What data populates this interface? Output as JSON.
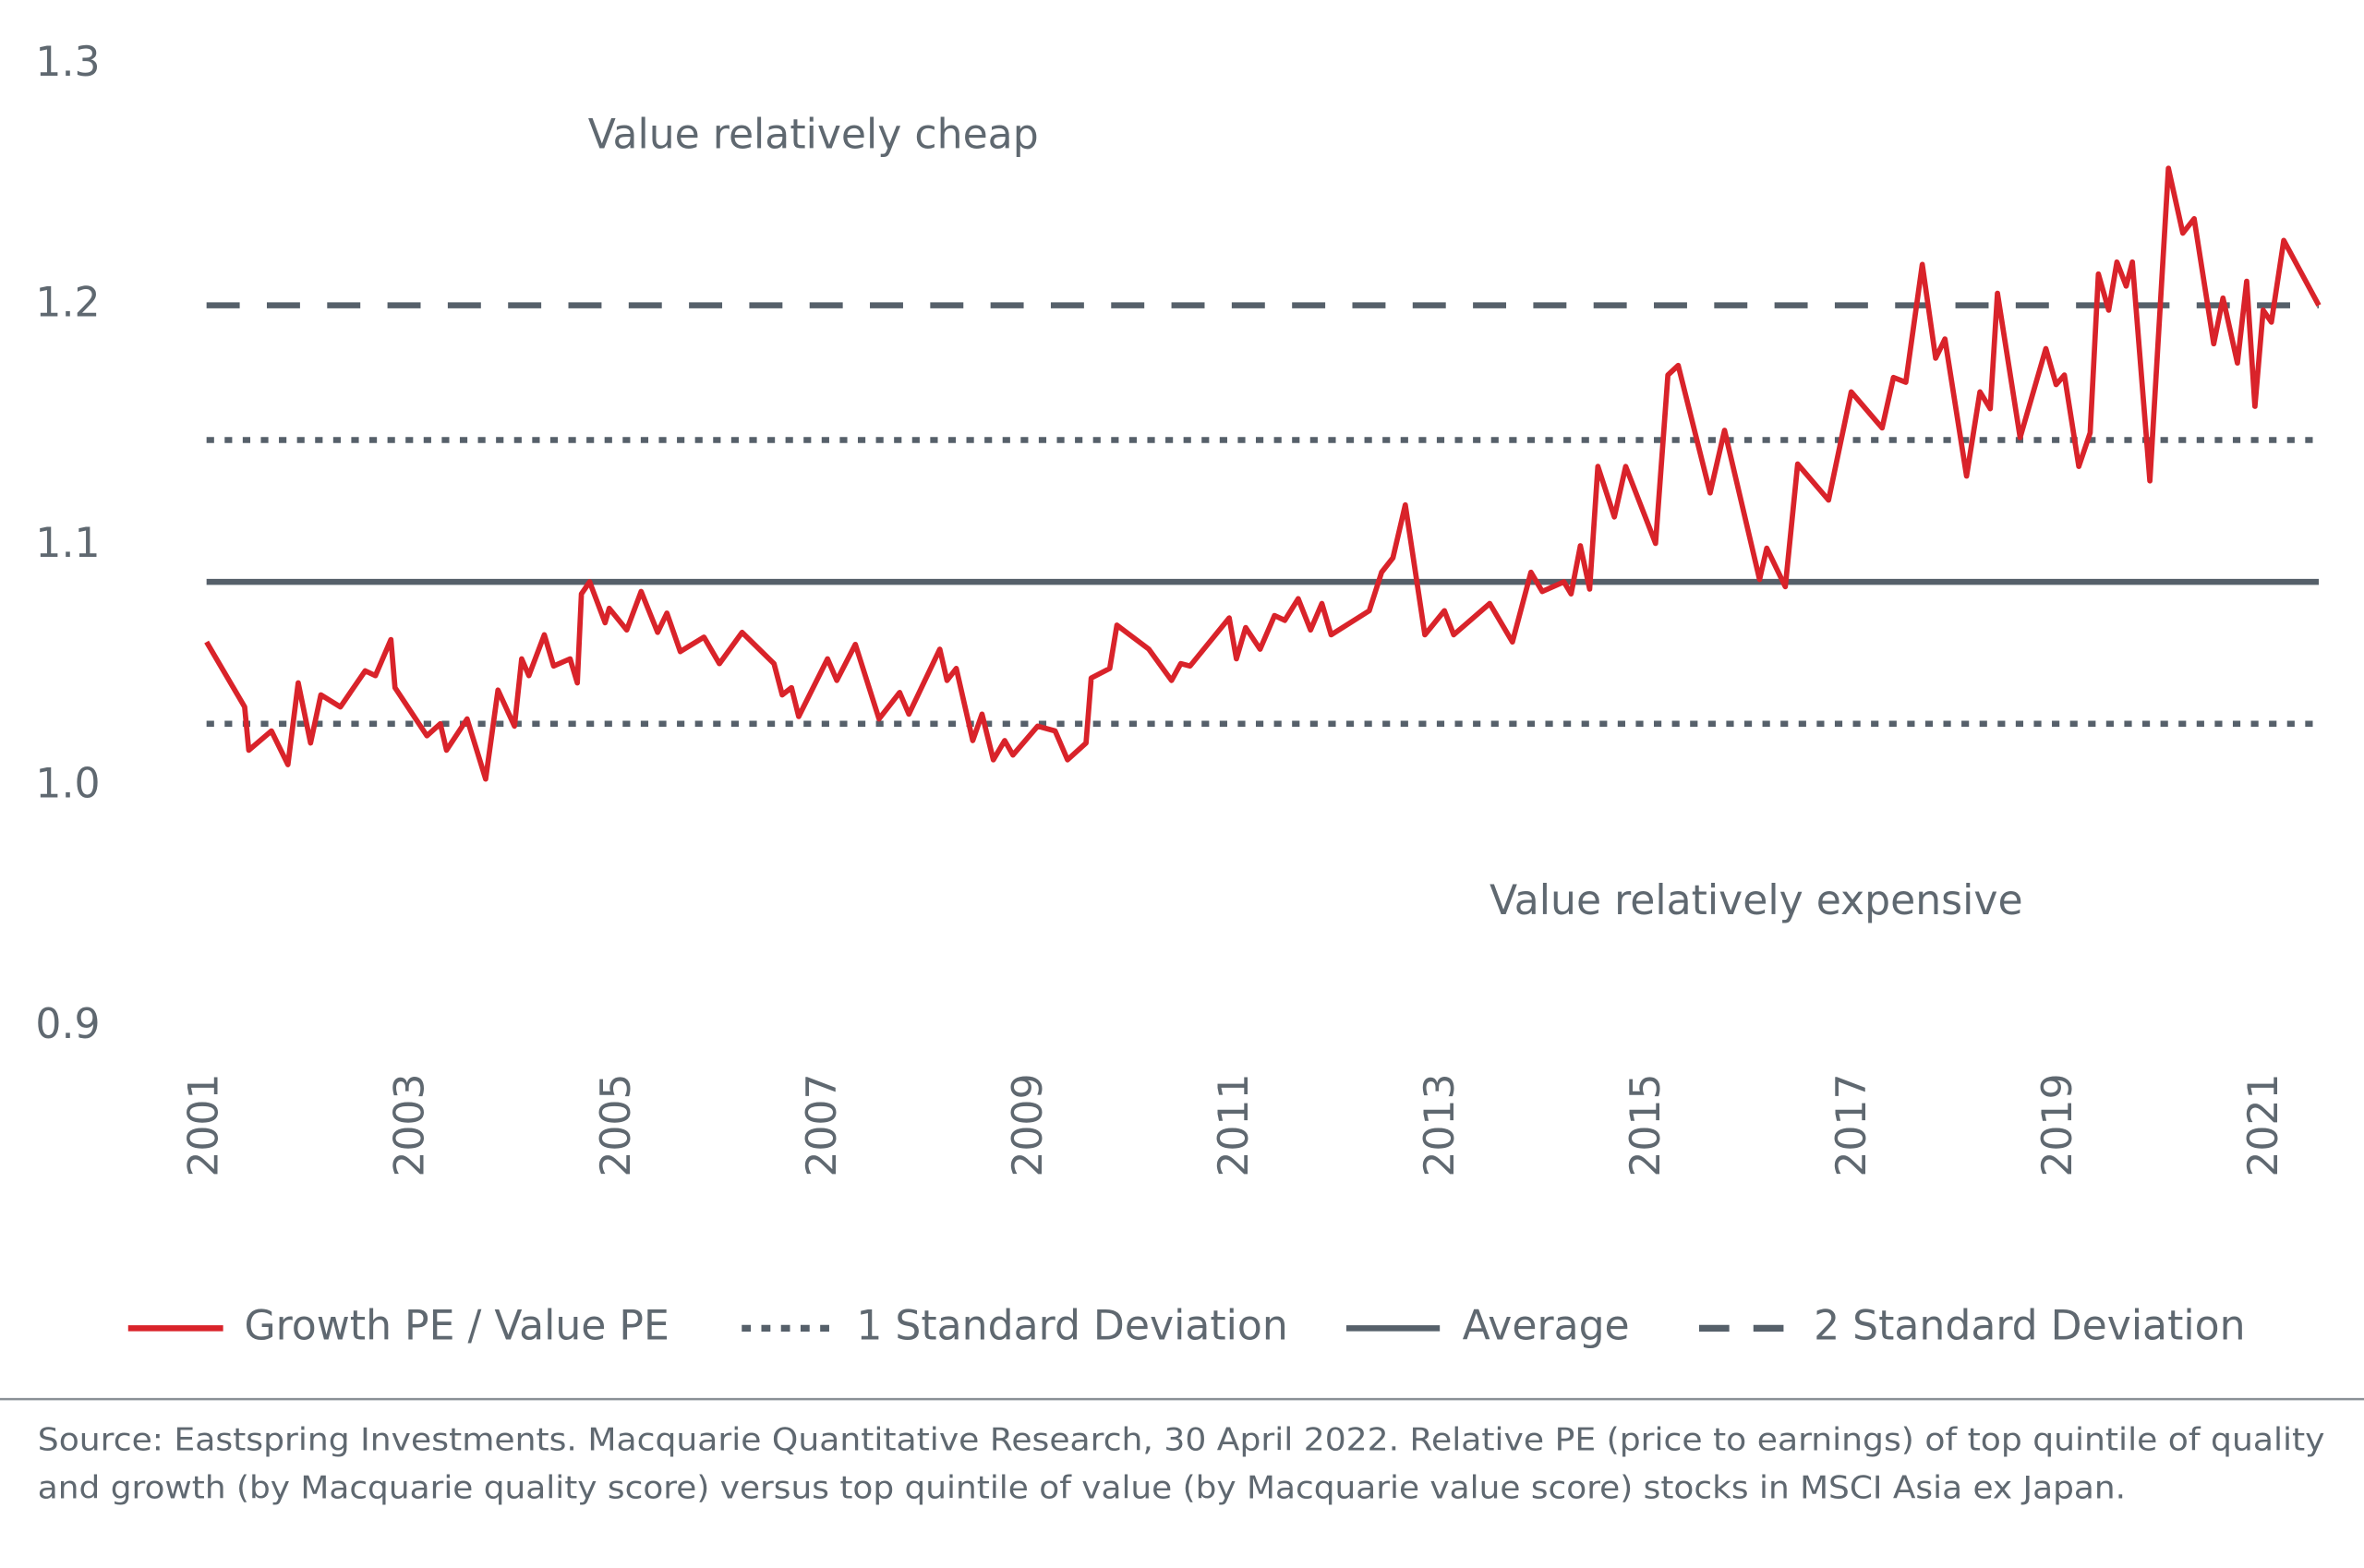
{
  "chart_data": {
    "type": "line",
    "annotations": [
      "Value relatively cheap",
      "Value relatively expensive"
    ],
    "source": [
      "Source: Eastspring Investments. Macquarie Quantitative Research, 30 April 2022. Relative PE (price to earnings) of top quintile of quality",
      "and growth (by Macquarie quality score) versus top quintile of value (by Macquarie value score) stocks in MSCI Asia ex Japan."
    ],
    "xlim": [
      2001,
      2021.51
    ],
    "xticks": [
      2001,
      2003,
      2005,
      2007,
      2009,
      2011,
      2013,
      2015,
      2017,
      2019,
      2021
    ],
    "ylim": [
      0.9,
      1.3
    ],
    "yticks": [
      {
        "value": 0.9,
        "label": "0.9"
      },
      {
        "value": 1.0,
        "label": "1.0"
      },
      {
        "value": 1.1,
        "label": "1.1"
      },
      {
        "value": 1.2,
        "label": "1.2"
      },
      {
        "value": 1.3,
        "label": "1.3"
      }
    ],
    "grid": false,
    "x": [
      2001.0,
      2001.37,
      2001.41,
      2001.63,
      2001.79,
      2001.89,
      2002.01,
      2002.11,
      2002.3,
      2002.54,
      2002.64,
      2002.79,
      2002.83,
      2003.14,
      2003.27,
      2003.33,
      2003.53,
      2003.71,
      2003.83,
      2003.99,
      2004.06,
      2004.13,
      2004.28,
      2004.37,
      2004.53,
      2004.6,
      2004.64,
      2004.72,
      2004.87,
      2004.91,
      2005.08,
      2005.22,
      2005.38,
      2005.47,
      2005.6,
      2005.83,
      2005.98,
      2006.2,
      2006.51,
      2006.59,
      2006.68,
      2006.75,
      2007.03,
      2007.12,
      2007.3,
      2007.53,
      2007.73,
      2007.82,
      2008.12,
      2008.19,
      2008.28,
      2008.44,
      2008.53,
      2008.64,
      2008.75,
      2008.83,
      2009.07,
      2009.24,
      2009.36,
      2009.54,
      2009.59,
      2009.77,
      2009.84,
      2010.15,
      2010.37,
      2010.46,
      2010.55,
      2010.93,
      2011.0,
      2011.09,
      2011.23,
      2011.37,
      2011.47,
      2011.6,
      2011.72,
      2011.83,
      2011.92,
      2012.29,
      2012.41,
      2012.52,
      2012.64,
      2012.83,
      2013.02,
      2013.11,
      2013.46,
      2013.68,
      2013.86,
      2013.97,
      2014.18,
      2014.25,
      2014.34,
      2014.43,
      2014.51,
      2014.67,
      2014.78,
      2015.07,
      2015.19,
      2015.29,
      2015.6,
      2015.74,
      2016.08,
      2016.15,
      2016.33,
      2016.45,
      2016.75,
      2016.97,
      2017.27,
      2017.38,
      2017.5,
      2017.66,
      2017.79,
      2017.88,
      2018.09,
      2018.22,
      2018.32,
      2018.39,
      2018.61,
      2018.86,
      2018.96,
      2019.04,
      2019.18,
      2019.29,
      2019.37,
      2019.47,
      2019.55,
      2019.64,
      2019.7,
      2019.87,
      2020.05,
      2020.19,
      2020.3,
      2020.49,
      2020.58,
      2020.72,
      2020.81,
      2020.89,
      2020.97,
      2021.05,
      2021.17,
      2021.51
    ],
    "series": [
      {
        "name": "Growth PE / Value PE",
        "color": "#d9232a",
        "style": "solid",
        "values": [
          1.06,
          1.033,
          1.015,
          1.023,
          1.009,
          1.043,
          1.018,
          1.038,
          1.033,
          1.048,
          1.046,
          1.061,
          1.041,
          1.021,
          1.026,
          1.015,
          1.028,
          1.003,
          1.04,
          1.025,
          1.053,
          1.046,
          1.063,
          1.05,
          1.053,
          1.043,
          1.08,
          1.085,
          1.068,
          1.074,
          1.065,
          1.081,
          1.064,
          1.072,
          1.056,
          1.062,
          1.051,
          1.064,
          1.051,
          1.038,
          1.041,
          1.029,
          1.053,
          1.044,
          1.059,
          1.028,
          1.039,
          1.03,
          1.057,
          1.044,
          1.049,
          1.019,
          1.03,
          1.011,
          1.019,
          1.013,
          1.025,
          1.023,
          1.011,
          1.018,
          1.045,
          1.049,
          1.067,
          1.057,
          1.044,
          1.051,
          1.05,
          1.07,
          1.053,
          1.066,
          1.057,
          1.071,
          1.069,
          1.078,
          1.065,
          1.076,
          1.063,
          1.073,
          1.089,
          1.095,
          1.117,
          1.063,
          1.073,
          1.063,
          1.076,
          1.06,
          1.089,
          1.081,
          1.085,
          1.08,
          1.1,
          1.082,
          1.133,
          1.112,
          1.133,
          1.101,
          1.171,
          1.175,
          1.122,
          1.148,
          1.086,
          1.099,
          1.083,
          1.134,
          1.119,
          1.164,
          1.149,
          1.17,
          1.168,
          1.217,
          1.178,
          1.186,
          1.129,
          1.164,
          1.157,
          1.205,
          1.145,
          1.182,
          1.167,
          1.171,
          1.133,
          1.147,
          1.213,
          1.198,
          1.218,
          1.208,
          1.218,
          1.127,
          1.257,
          1.23,
          1.236,
          1.184,
          1.203,
          1.176,
          1.21,
          1.158,
          1.198,
          1.193,
          1.227,
          1.2
        ]
      },
      {
        "name": "1 Standard Deviation",
        "color": "#56606a",
        "style": "dotted",
        "levels": [
          1.144,
          1.026
        ]
      },
      {
        "name": "Average",
        "color": "#56606a",
        "style": "solid",
        "levels": [
          1.085
        ]
      },
      {
        "name": "2 Standard Deviation",
        "color": "#56606a",
        "style": "dashed",
        "levels": [
          1.2
        ]
      }
    ]
  }
}
